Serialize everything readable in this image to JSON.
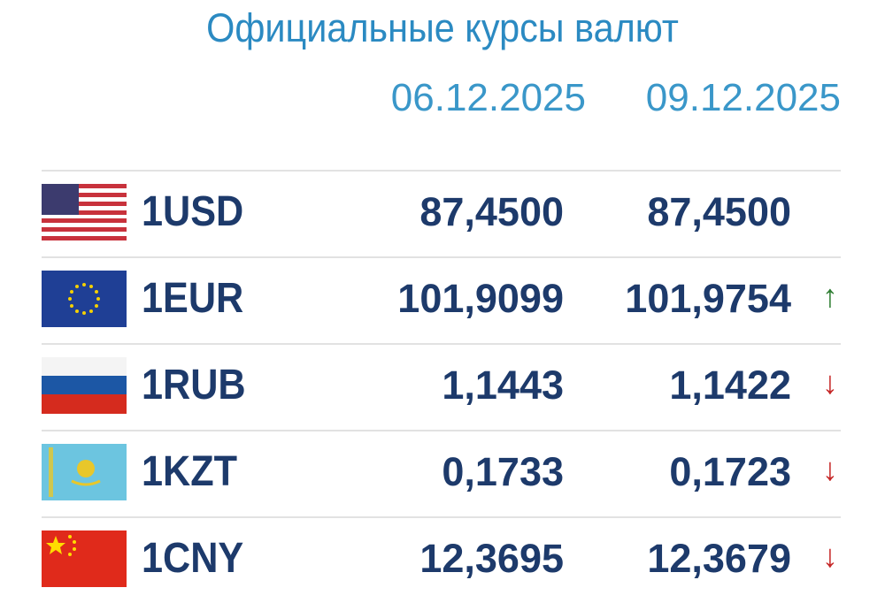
{
  "header": {
    "title": "Официальные курсы валют",
    "dates": [
      "06.12.2025",
      "09.12.2025"
    ]
  },
  "table": {
    "rows": [
      {
        "code": "1USD",
        "rate_1": "87,4500",
        "rate_2": "87,4500"
      },
      {
        "code": "1EUR",
        "rate_1": "101,9099",
        "rate_2": "101,9754",
        "arrow": "↑",
        "arrow_color": "#2e7d32"
      },
      {
        "code": "1RUB",
        "rate_1": "1,1443",
        "rate_2": "1,1422",
        "arrow": "↓",
        "arrow_color": "#c62828"
      },
      {
        "code": "1KZT",
        "rate_1": "0,1733",
        "rate_2": "0,1723",
        "arrow": "↓",
        "arrow_color": "#c62828"
      },
      {
        "code": "1CNY",
        "rate_1": "12,3695",
        "rate_2": "12,3679",
        "arrow": "↓",
        "arrow_color": "#c62828"
      }
    ]
  }
}
